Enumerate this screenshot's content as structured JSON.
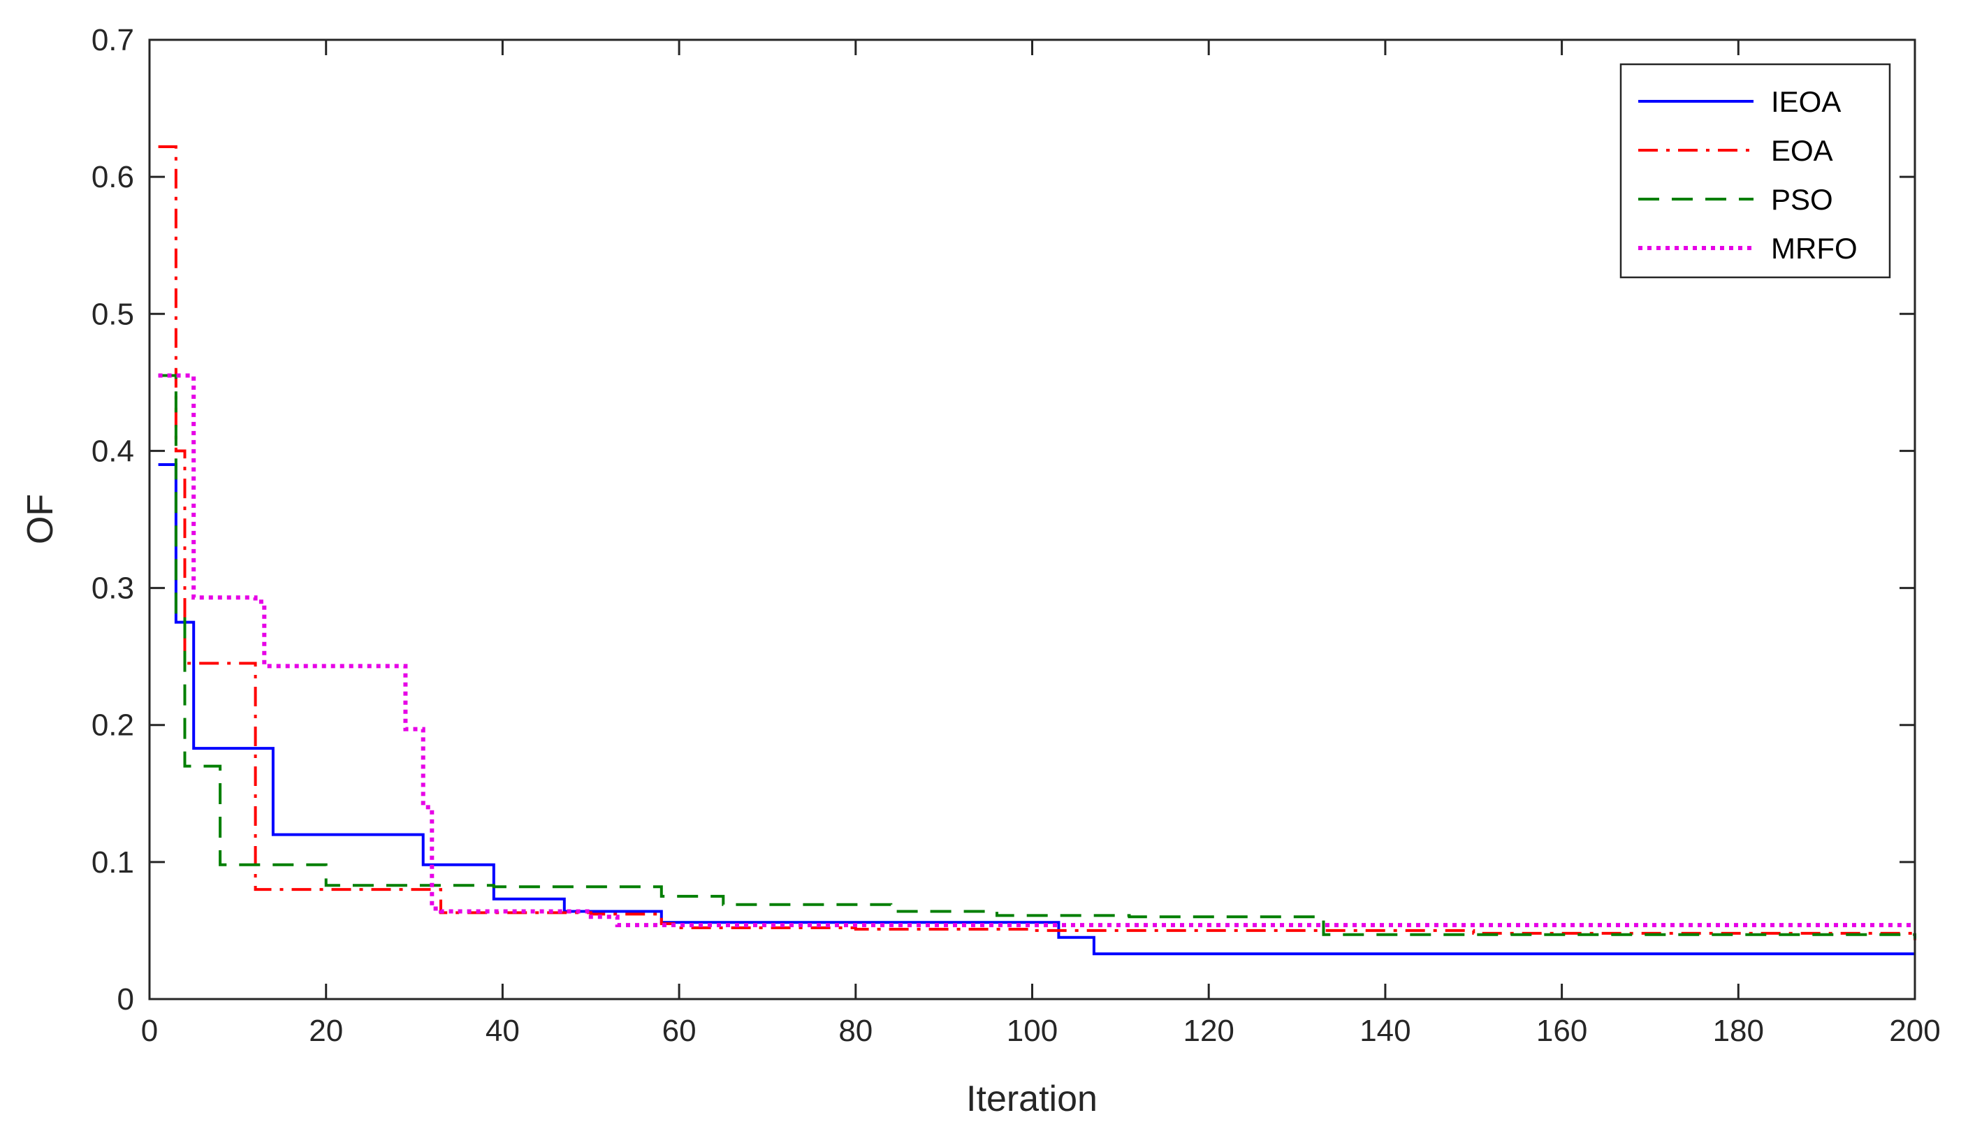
{
  "chart_data": {
    "type": "line",
    "title": "",
    "xlabel": "Iteration",
    "ylabel": "OF",
    "xlim": [
      0,
      200
    ],
    "ylim": [
      0,
      0.7
    ],
    "xticks": [
      0,
      20,
      40,
      60,
      80,
      100,
      120,
      140,
      160,
      180,
      200
    ],
    "yticks": [
      0,
      0.1,
      0.2,
      0.3,
      0.4,
      0.5,
      0.6,
      0.7
    ],
    "xtick_labels": [
      "0",
      "20",
      "40",
      "60",
      "80",
      "100",
      "120",
      "140",
      "160",
      "180",
      "200"
    ],
    "ytick_labels": [
      "0",
      "0.1",
      "0.2",
      "0.3",
      "0.4",
      "0.5",
      "0.6",
      "0.7"
    ],
    "grid": false,
    "legend_position": "top-right",
    "series": [
      {
        "name": "IEOA",
        "color": "#0000ff",
        "dash": "solid",
        "x": [
          1,
          2,
          3,
          4,
          5,
          13,
          14,
          30,
          31,
          38,
          39,
          46,
          47,
          57,
          58,
          102,
          103,
          106,
          107,
          200
        ],
        "y": [
          0.39,
          0.39,
          0.275,
          0.275,
          0.183,
          0.183,
          0.12,
          0.12,
          0.098,
          0.098,
          0.073,
          0.073,
          0.064,
          0.064,
          0.056,
          0.056,
          0.045,
          0.045,
          0.033,
          0.033
        ]
      },
      {
        "name": "EOA",
        "color": "#ff0000",
        "dash": "dashdot",
        "x": [
          1,
          2,
          3,
          4,
          11,
          12,
          20,
          32,
          33,
          40,
          50,
          58,
          60,
          80,
          100,
          120,
          150,
          200
        ],
        "y": [
          0.622,
          0.622,
          0.4,
          0.245,
          0.245,
          0.08,
          0.08,
          0.08,
          0.063,
          0.063,
          0.062,
          0.055,
          0.052,
          0.051,
          0.05,
          0.05,
          0.048,
          0.043
        ]
      },
      {
        "name": "PSO",
        "color": "#007f00",
        "dash": "dashed",
        "x": [
          1,
          2,
          3,
          4,
          5,
          7,
          8,
          19,
          20,
          38,
          39,
          57,
          58,
          64,
          65,
          83,
          84,
          95,
          96,
          110,
          111,
          131,
          133,
          200
        ],
        "y": [
          0.455,
          0.455,
          0.28,
          0.17,
          0.17,
          0.17,
          0.098,
          0.098,
          0.083,
          0.083,
          0.082,
          0.082,
          0.075,
          0.075,
          0.069,
          0.069,
          0.064,
          0.064,
          0.061,
          0.061,
          0.06,
          0.06,
          0.047,
          0.044
        ]
      },
      {
        "name": "MRFO",
        "color": "#e600e6",
        "dash": "dotted",
        "x": [
          1,
          3,
          4,
          5,
          6,
          12,
          13,
          28,
          29,
          30,
          31,
          32,
          33,
          50,
          53,
          200
        ],
        "y": [
          0.455,
          0.455,
          0.455,
          0.293,
          0.293,
          0.29,
          0.243,
          0.243,
          0.197,
          0.197,
          0.14,
          0.066,
          0.064,
          0.06,
          0.054,
          0.054
        ]
      }
    ]
  }
}
